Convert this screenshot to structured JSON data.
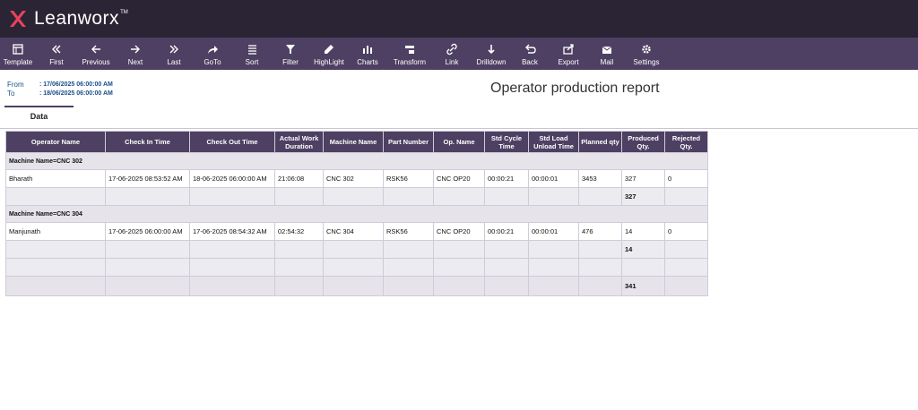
{
  "app": {
    "logo_text": "Leanworx",
    "logo_tm": "TM"
  },
  "toolbar": [
    {
      "label": "Template",
      "icon": "template-icon"
    },
    {
      "label": "First",
      "icon": "first-icon"
    },
    {
      "label": "Previous",
      "icon": "previous-icon"
    },
    {
      "label": "Next",
      "icon": "next-icon"
    },
    {
      "label": "Last",
      "icon": "last-icon"
    },
    {
      "label": "GoTo",
      "icon": "goto-icon"
    },
    {
      "label": "Sort",
      "icon": "sort-icon"
    },
    {
      "label": "Filter",
      "icon": "filter-icon"
    },
    {
      "label": "HighLight",
      "icon": "highlight-icon"
    },
    {
      "label": "Charts",
      "icon": "charts-icon"
    },
    {
      "label": "Transform",
      "icon": "transform-icon"
    },
    {
      "label": "Link",
      "icon": "link-icon"
    },
    {
      "label": "Drilldown",
      "icon": "drilldown-icon"
    },
    {
      "label": "Back",
      "icon": "back-icon"
    },
    {
      "label": "Export",
      "icon": "export-icon"
    },
    {
      "label": "Mail",
      "icon": "mail-icon"
    },
    {
      "label": "Settings",
      "icon": "settings-icon"
    }
  ],
  "meta": {
    "from_label": "From",
    "from_value": ": 17/06/2025 06:00:00 AM",
    "to_label": "To",
    "to_value": ": 18/06/2025 06:00:00 AM"
  },
  "report_title": "Operator production report",
  "tabs": {
    "data": "Data"
  },
  "table": {
    "columns": [
      "Operator Name",
      "Check In Time",
      "Check Out Time",
      "Actual Work Duration",
      "Machine Name",
      "Part Number",
      "Op. Name",
      "Std Cycle Time",
      "Std Load Unload Time",
      "Planned qty",
      "Produced Qty.",
      "Rejected Qty."
    ],
    "groups": [
      {
        "label": "Machine Name=CNC 302",
        "rows": [
          [
            "Bharath",
            "17-06-2025 08:53:52 AM",
            "18-06-2025 06:00:00 AM",
            "21:06:08",
            "CNC 302",
            "RSK56",
            "CNC OP20",
            "00:00:21",
            "00:00:01",
            "3453",
            "327",
            "0"
          ]
        ],
        "subtotal_produced": "327"
      },
      {
        "label": "Machine Name=CNC 304",
        "rows": [
          [
            "Manjunath",
            "17-06-2025 06:00:00 AM",
            "17-06-2025 08:54:32 AM",
            "02:54:32",
            "CNC 304",
            "RSK56",
            "CNC OP20",
            "00:00:21",
            "00:00:01",
            "476",
            "14",
            "0"
          ]
        ],
        "subtotal_produced": "14"
      }
    ],
    "grand_total_produced": "341"
  },
  "colors": {
    "topbar": "#2b2434",
    "toolbar": "#4d4062",
    "header": "#4d4062",
    "logo_accent": "#e8425a"
  }
}
